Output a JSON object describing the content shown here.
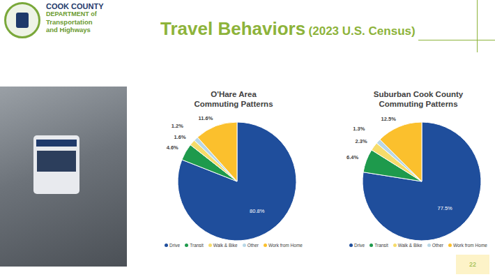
{
  "slide": {
    "title": "Travel Behaviors",
    "title_note": "(2023 U.S. Census)",
    "logo": [
      "COOK COUNTY",
      "DEPARTMENT of",
      "Transportation",
      "and Highways"
    ],
    "page": 22
  },
  "chart_data": [
    {
      "type": "pie",
      "title": "O'Hare Area\nCommuting Patterns",
      "categories": [
        "Drive",
        "Transit",
        "Walk & Bike",
        "Other",
        "Work from Home"
      ],
      "values": [
        80.8,
        4.6,
        1.6,
        1.2,
        11.6
      ],
      "value_labels": [
        "80.8%",
        "4.6%",
        "1.6%",
        "1.2%",
        "11.6%"
      ],
      "colors": [
        "#1f4e9c",
        "#1e9a4c",
        "#f6dc6a",
        "#b9d7e6",
        "#fbc02d"
      ],
      "data_labels": true,
      "legend": "bottom"
    },
    {
      "type": "pie",
      "title": "Suburban Cook County\nCommuting Patterns",
      "categories": [
        "Drive",
        "Transit",
        "Walk & Bike",
        "Other",
        "Work from Home"
      ],
      "values": [
        77.5,
        6.4,
        2.3,
        1.3,
        12.5
      ],
      "value_labels": [
        "77.5%",
        "6.4%",
        "2.3%",
        "1.3%",
        "12.5%"
      ],
      "colors": [
        "#1f4e9c",
        "#1e9a4c",
        "#f6dc6a",
        "#b9d7e6",
        "#fbc02d"
      ],
      "data_labels": true,
      "legend": "bottom"
    }
  ]
}
